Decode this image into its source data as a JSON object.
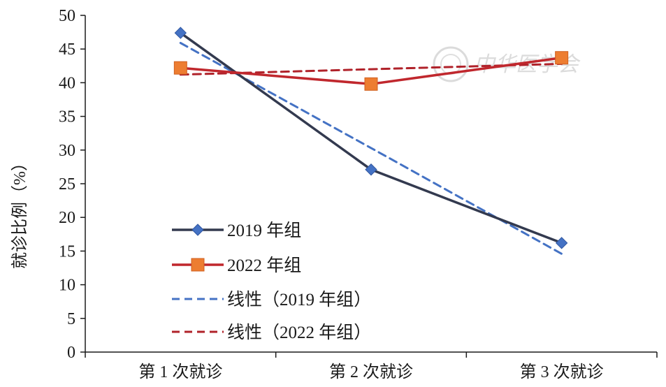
{
  "chart_data": {
    "type": "line",
    "categories": [
      "第 1 次就诊",
      "第 2 次就诊",
      "第 3 次就诊"
    ],
    "ylabel": "就诊比例（%）",
    "ylim": [
      0,
      50
    ],
    "yticks": [
      0,
      5,
      10,
      15,
      20,
      25,
      30,
      35,
      40,
      45,
      50
    ],
    "grid": false,
    "legend_position": "bottom-left",
    "series": [
      {
        "name": "2019 年组",
        "values": [
          47.4,
          27.1,
          16.2
        ],
        "color": "#333a4f",
        "style": "solid",
        "marker": "diamond",
        "marker_color": "#4472c4"
      },
      {
        "name": "2022 年组",
        "values": [
          42.2,
          39.8,
          43.7
        ],
        "color": "#c0272d",
        "style": "solid",
        "marker": "square",
        "marker_color": "#ed7d31"
      },
      {
        "name": "线性（2019 年组）",
        "values": [
          45.9,
          30.3,
          14.6
        ],
        "color": "#4472c4",
        "style": "dashed",
        "marker": "none"
      },
      {
        "name": "线性（2022 年组）",
        "values": [
          41.2,
          42.0,
          42.8
        ],
        "color": "#b0222a",
        "style": "dashed",
        "marker": "none"
      }
    ]
  },
  "watermark": {
    "text": "中华医学会"
  }
}
